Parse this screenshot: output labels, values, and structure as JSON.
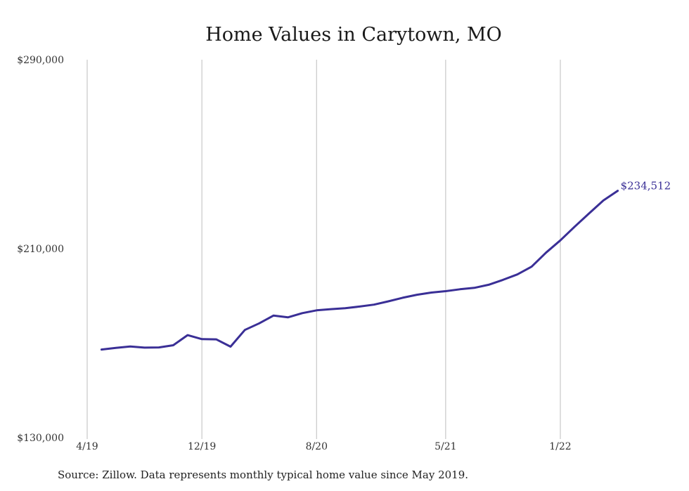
{
  "colors": {
    "line": "#3a2f96",
    "grid": "#c8c8c8",
    "background": "#ffffff",
    "text": "#222222"
  },
  "source_note": "Source: Zillow. Data represents monthly typical home value since May 2019.",
  "chart_data": {
    "type": "line",
    "title": "Home Values in Carytown, MO",
    "xlabel": "",
    "ylabel": "",
    "ylim": [
      130000,
      290000
    ],
    "y_ticks": [
      {
        "value": 290000,
        "label": "$290,000"
      },
      {
        "value": 210000,
        "label": "$210,000"
      },
      {
        "value": 130000,
        "label": "$130,000"
      }
    ],
    "x_ticks": [
      {
        "value": "2019-04",
        "label": "4/19"
      },
      {
        "value": "2019-12",
        "label": "12/19"
      },
      {
        "value": "2020-08",
        "label": "8/20"
      },
      {
        "value": "2021-05",
        "label": "5/21"
      },
      {
        "value": "2022-01",
        "label": "1/22"
      }
    ],
    "grid": "vertical",
    "legend": "none",
    "end_label": "$234,512",
    "series": [
      {
        "color": "#3a2f96",
        "x": [
          "2019-05",
          "2019-06",
          "2019-07",
          "2019-08",
          "2019-09",
          "2019-10",
          "2019-11",
          "2019-12",
          "2020-01",
          "2020-02",
          "2020-03",
          "2020-04",
          "2020-05",
          "2020-06",
          "2020-07",
          "2020-08",
          "2020-09",
          "2020-10",
          "2020-11",
          "2020-12",
          "2021-01",
          "2021-02",
          "2021-03",
          "2021-04",
          "2021-05",
          "2021-06",
          "2021-07",
          "2021-08",
          "2021-09",
          "2021-10",
          "2021-11",
          "2021-12",
          "2022-01",
          "2022-02",
          "2022-03",
          "2022-04",
          "2022-05"
        ],
        "y": [
          167300,
          168000,
          168600,
          168100,
          168200,
          169100,
          173400,
          171700,
          171600,
          168500,
          175600,
          178400,
          181700,
          180900,
          182700,
          183900,
          184400,
          184800,
          185500,
          186300,
          187700,
          189200,
          190500,
          191400,
          192000,
          192800,
          193400,
          194700,
          196800,
          199100,
          202400,
          208300,
          213500,
          219300,
          224900,
          230400,
          234512
        ]
      }
    ]
  }
}
